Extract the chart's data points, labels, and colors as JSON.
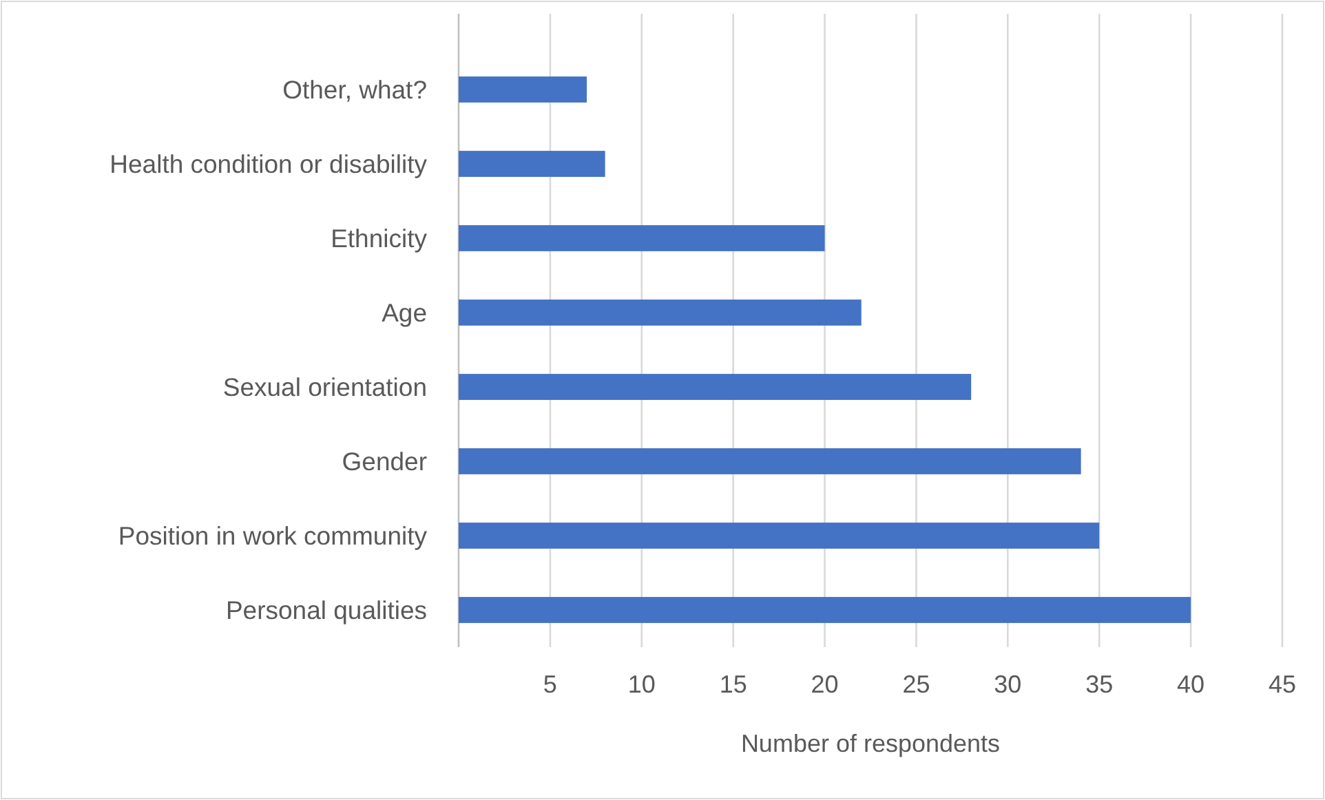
{
  "chart_data": {
    "type": "bar",
    "orientation": "horizontal",
    "xlabel": "Number of respondents",
    "categories": [
      "Other, what?",
      "Health condition or disability",
      "Ethnicity",
      "Age",
      "Sexual orientation",
      "Gender",
      "Position in work community",
      "Personal qualities"
    ],
    "values": [
      7,
      8,
      20,
      22,
      28,
      34,
      35,
      40
    ],
    "color": "#4472c4",
    "xlim": [
      0,
      45
    ],
    "xticks": [
      {
        "value": 0,
        "label": null
      },
      5,
      10,
      15,
      20,
      25,
      30,
      35,
      40,
      45
    ],
    "grid": "x"
  }
}
